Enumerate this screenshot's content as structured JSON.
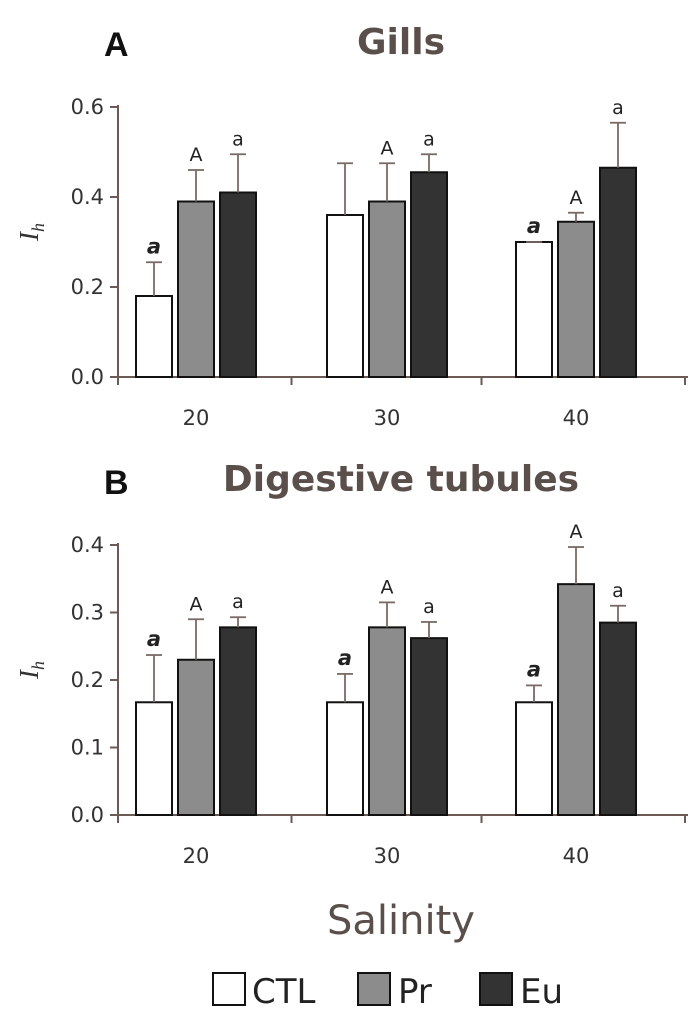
{
  "colors": {
    "CTL": "#ffffff",
    "Pr": "#8c8c8c",
    "Eu": "#333333",
    "axis": "#6b5a55",
    "title": "#5a4f4a"
  },
  "xlabel": "Salinity",
  "legend": [
    {
      "key": "CTL",
      "label": "CTL"
    },
    {
      "key": "Pr",
      "label": "Pr"
    },
    {
      "key": "Eu",
      "label": "Eu"
    }
  ],
  "chart_data": [
    {
      "type": "bar",
      "panel": "A",
      "title": "Gills",
      "ylabel": "I",
      "ylabel_sub": "h",
      "ylim": [
        0,
        0.6
      ],
      "yticks": [
        "0.0",
        "0.2",
        "0.4",
        "0.6"
      ],
      "categories": [
        "20",
        "30",
        "40"
      ],
      "series": [
        {
          "name": "CTL",
          "values": [
            0.18,
            0.36,
            0.3
          ],
          "errors": [
            0.075,
            0.115,
            0.0
          ],
          "labels": [
            "a",
            "",
            "a"
          ]
        },
        {
          "name": "Pr",
          "values": [
            0.39,
            0.39,
            0.345
          ],
          "errors": [
            0.07,
            0.085,
            0.02
          ],
          "labels": [
            "A",
            "A",
            "A"
          ]
        },
        {
          "name": "Eu",
          "values": [
            0.41,
            0.455,
            0.465
          ],
          "errors": [
            0.085,
            0.04,
            0.1
          ],
          "labels": [
            "a",
            "a",
            "a"
          ]
        }
      ]
    },
    {
      "type": "bar",
      "panel": "B",
      "title": "Digestive tubules",
      "ylabel": "I",
      "ylabel_sub": "h",
      "ylim": [
        0,
        0.4
      ],
      "yticks": [
        "0.0",
        "0.1",
        "0.2",
        "0.3",
        "0.4"
      ],
      "categories": [
        "20",
        "30",
        "40"
      ],
      "series": [
        {
          "name": "CTL",
          "values": [
            0.167,
            0.167,
            0.167
          ],
          "errors": [
            0.07,
            0.042,
            0.025
          ],
          "labels": [
            "a",
            "a",
            "a"
          ]
        },
        {
          "name": "Pr",
          "values": [
            0.23,
            0.278,
            0.342
          ],
          "errors": [
            0.06,
            0.037,
            0.055
          ],
          "labels": [
            "A",
            "A",
            "A"
          ]
        },
        {
          "name": "Eu",
          "values": [
            0.278,
            0.262,
            0.285
          ],
          "errors": [
            0.015,
            0.024,
            0.025
          ],
          "labels": [
            "a",
            "a",
            "a"
          ]
        }
      ]
    }
  ]
}
